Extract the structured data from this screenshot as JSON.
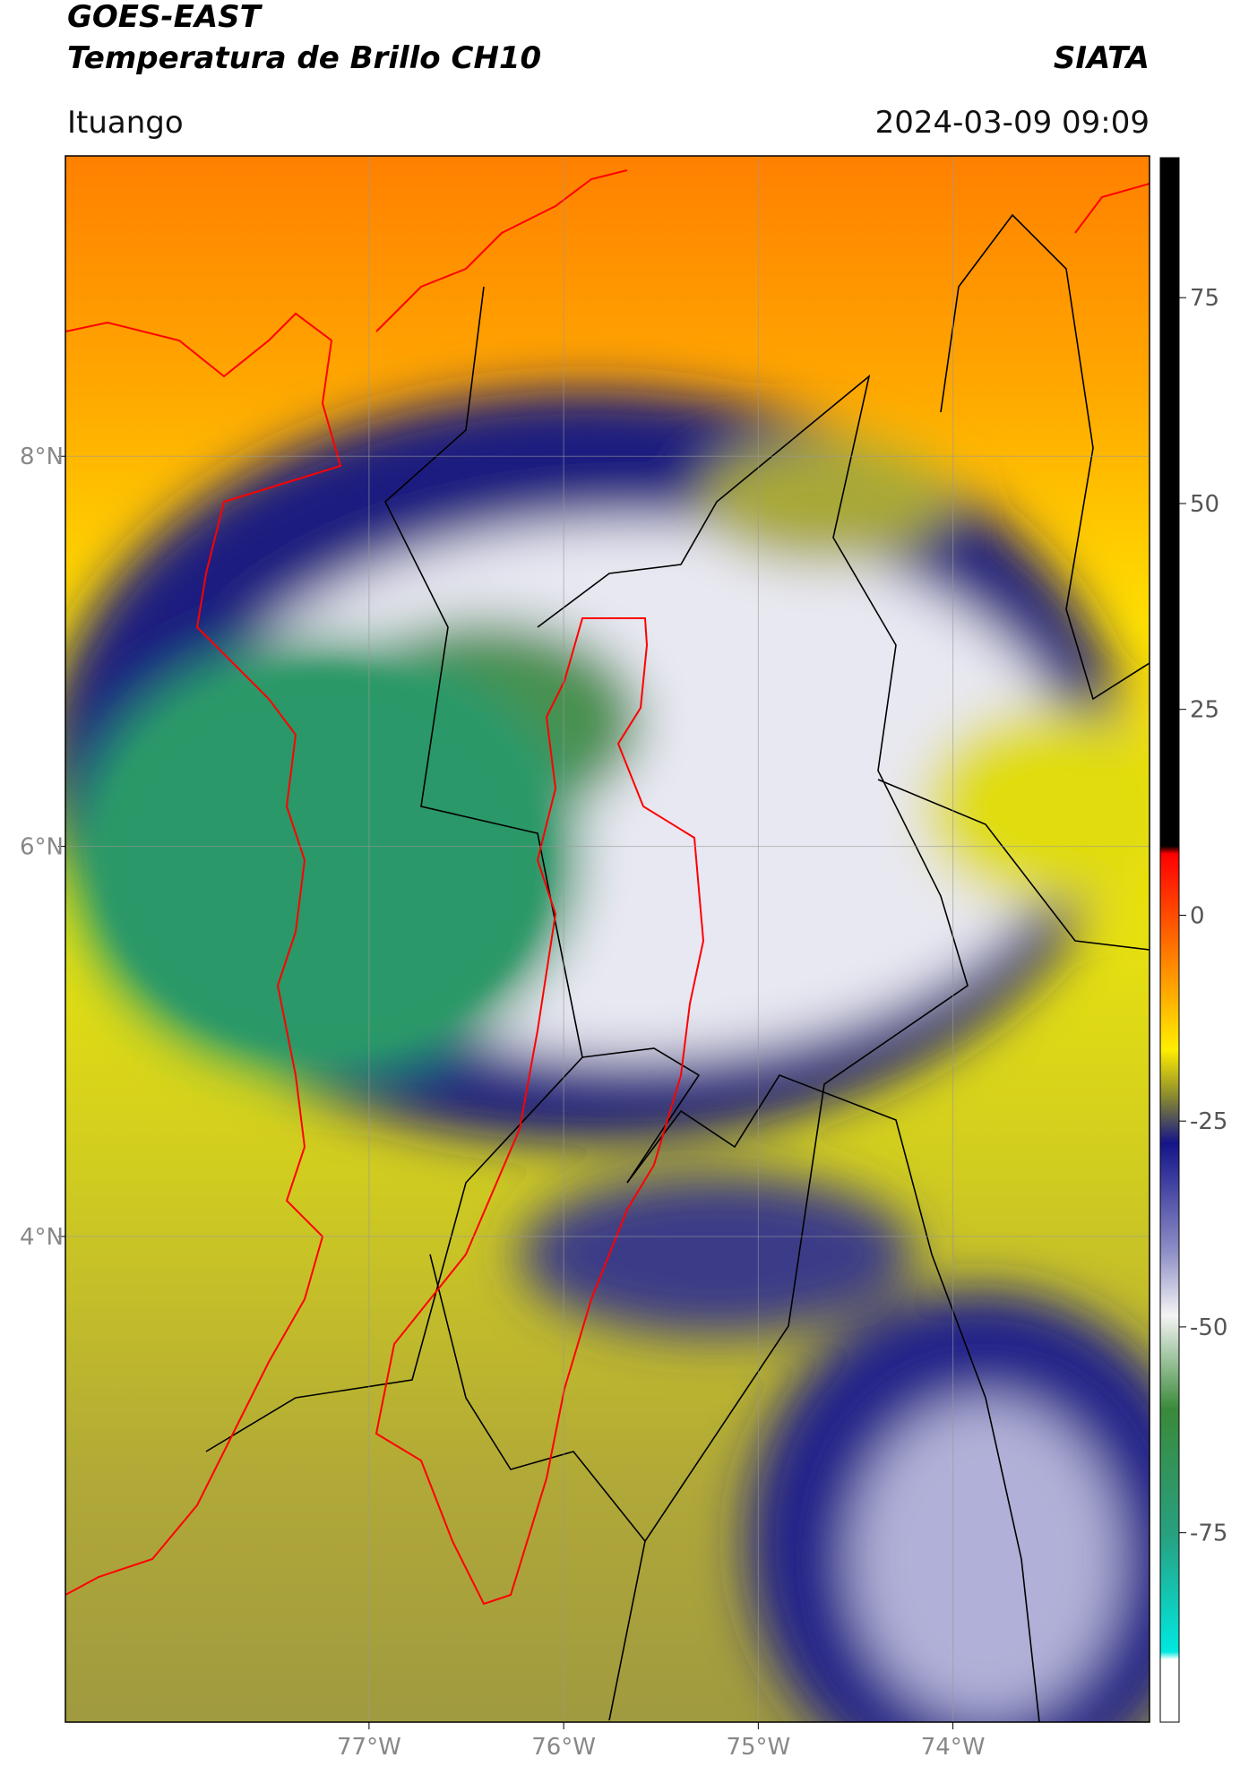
{
  "header": {
    "title": "GOES-EAST",
    "subtitle": "Temperatura de Brillo CH10",
    "source": "SIATA",
    "location": "Ituango",
    "timestamp": "2024-03-09 09:09"
  },
  "map": {
    "xlim": [
      -78.56,
      -72.99
    ],
    "ylim": [
      1.51,
      9.54
    ],
    "xticks": [
      {
        "value": -77,
        "label": "77°W"
      },
      {
        "value": -76,
        "label": "76°W"
      },
      {
        "value": -75,
        "label": "75°W"
      },
      {
        "value": -74,
        "label": "74°W"
      }
    ],
    "yticks": [
      {
        "value": 8,
        "label": "8°N"
      },
      {
        "value": 6,
        "label": "6°N"
      },
      {
        "value": 4,
        "label": "4°N"
      }
    ],
    "grid": true
  },
  "colorbar": {
    "lim": [
      -98,
      92
    ],
    "ticks": [
      75,
      50,
      25,
      0,
      -25,
      -50,
      -75
    ]
  }
}
